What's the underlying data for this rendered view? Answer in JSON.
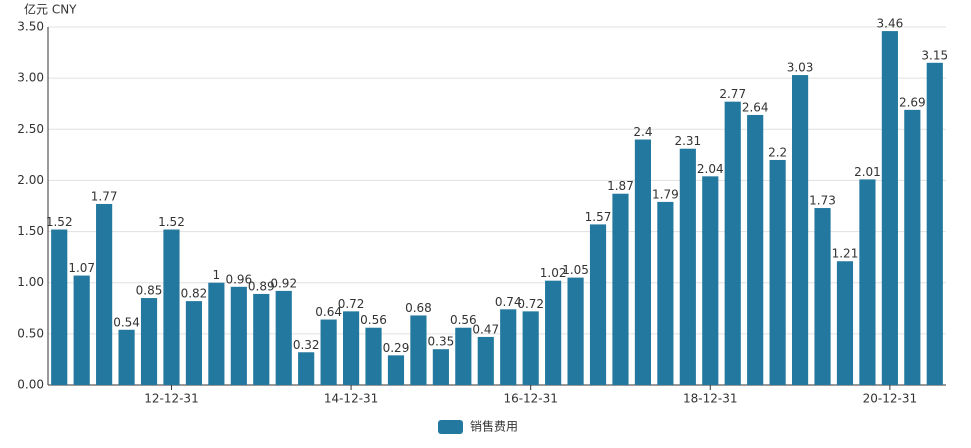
{
  "chart_data": {
    "type": "bar",
    "y_axis_name": "亿元  CNY",
    "color": "#22789f",
    "grid": true,
    "legend_position": "bottom",
    "categories": [
      null,
      null,
      null,
      null,
      null,
      "12-12-31",
      null,
      null,
      null,
      null,
      null,
      null,
      null,
      "14-12-31",
      null,
      null,
      null,
      null,
      null,
      null,
      null,
      "16-12-31",
      null,
      null,
      null,
      null,
      null,
      null,
      null,
      "18-12-31",
      null,
      null,
      null,
      null,
      null,
      null,
      null,
      "20-12-31",
      null,
      null
    ],
    "series": [
      {
        "name": "销售费用",
        "color": "#22789f",
        "values": [
          1.52,
          1.07,
          1.77,
          0.54,
          0.85,
          1.52,
          0.82,
          1,
          0.96,
          0.89,
          0.92,
          0.32,
          0.64,
          0.72,
          0.56,
          0.29,
          0.68,
          0.35,
          0.56,
          0.47,
          0.74,
          0.72,
          1.02,
          1.05,
          1.57,
          1.87,
          2.4,
          1.79,
          2.31,
          2.04,
          2.77,
          2.64,
          2.2,
          3.03,
          1.73,
          1.21,
          2.01,
          3.46,
          2.69,
          3.15
        ]
      }
    ],
    "ylim": [
      0,
      3.5
    ],
    "yticks": [
      {
        "value": 0,
        "label": "0.00"
      },
      {
        "value": 0.5,
        "label": "0.50"
      },
      {
        "value": 1,
        "label": "1.00"
      },
      {
        "value": 1.5,
        "label": "1.50"
      },
      {
        "value": 2,
        "label": "2.00"
      },
      {
        "value": 2.5,
        "label": "2.50"
      },
      {
        "value": 3,
        "label": "3.00"
      },
      {
        "value": 3.5,
        "label": "3.50"
      }
    ]
  }
}
